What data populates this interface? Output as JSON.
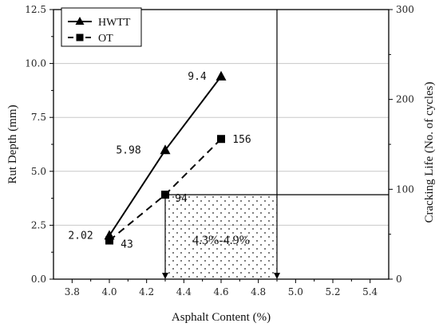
{
  "chart_data": {
    "type": "line",
    "xlabel": "Asphalt Content (%)",
    "ylabel_left": "Rut Depth (mm)",
    "ylabel_right": "Cracking Life (No. of cycles)",
    "xlim": [
      3.7,
      5.5
    ],
    "ylim_left": [
      0,
      12.5
    ],
    "ylim_right": [
      0,
      300
    ],
    "x_ticks": [
      "3.8",
      "4.0",
      "4.2",
      "4.4",
      "4.6",
      "4.8",
      "5.0",
      "5.2",
      "5.4"
    ],
    "y_left_ticks": [
      "0.0",
      "2.5",
      "5.0",
      "7.5",
      "10.0",
      "12.5"
    ],
    "y_right_ticks": [
      "0",
      "100",
      "200",
      "300"
    ],
    "grid": "horizontal",
    "legend_position": "top-left",
    "series": [
      {
        "name": "HWTT",
        "axis": "left",
        "marker": "triangle",
        "line": "solid",
        "x": [
          4.0,
          4.3,
          4.6
        ],
        "y": [
          2.02,
          5.98,
          9.4
        ],
        "labels": [
          "2.02",
          "5.98",
          "9.4"
        ]
      },
      {
        "name": "OT",
        "axis": "right",
        "marker": "square",
        "line": "dashed",
        "x": [
          4.0,
          4.3,
          4.6
        ],
        "y": [
          43,
          94,
          156
        ],
        "labels": [
          "43",
          "94",
          "156"
        ]
      }
    ],
    "annotations": {
      "region_label": "4.3%-4.9%",
      "x_from": 4.3,
      "x_to": 4.9,
      "right_threshold": 94
    }
  }
}
